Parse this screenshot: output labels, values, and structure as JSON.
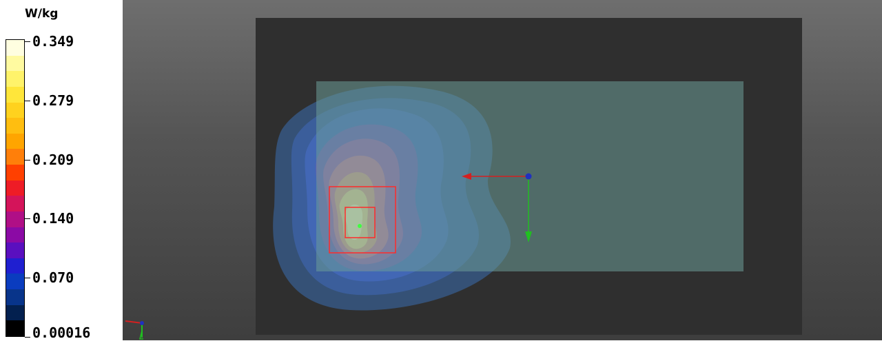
{
  "legend": {
    "unit": "W/kg",
    "ticks": [
      {
        "label": "0.349",
        "value": 0.349
      },
      {
        "label": "0.279",
        "value": 0.279
      },
      {
        "label": "0.209",
        "value": 0.209
      },
      {
        "label": "0.140",
        "value": 0.14
      },
      {
        "label": "0.070",
        "value": 0.07
      },
      {
        "label": "0.00016",
        "value": 0.00016
      }
    ],
    "colors": [
      "#fffee0",
      "#fffaa0",
      "#fff36a",
      "#ffe63a",
      "#ffd21e",
      "#ffbe10",
      "#ffa500",
      "#ff7f0a",
      "#ff4000",
      "#ee1c26",
      "#d4145a",
      "#b00f86",
      "#8b0aa5",
      "#5a0fbf",
      "#1f1fd0",
      "#0a3cbf",
      "#08348a",
      "#03204f",
      "#000000"
    ]
  },
  "viewport": {
    "background_top": "#6e6e6e",
    "background_bottom": "#3e3e3e",
    "phantom_color": "#2f2f2f",
    "plane_color": "#6b9c98",
    "marker_color": "#ff2a2a",
    "axes": {
      "x_color": "#d42020",
      "y_color": "#20c020",
      "z_color": "#2030c0"
    }
  }
}
